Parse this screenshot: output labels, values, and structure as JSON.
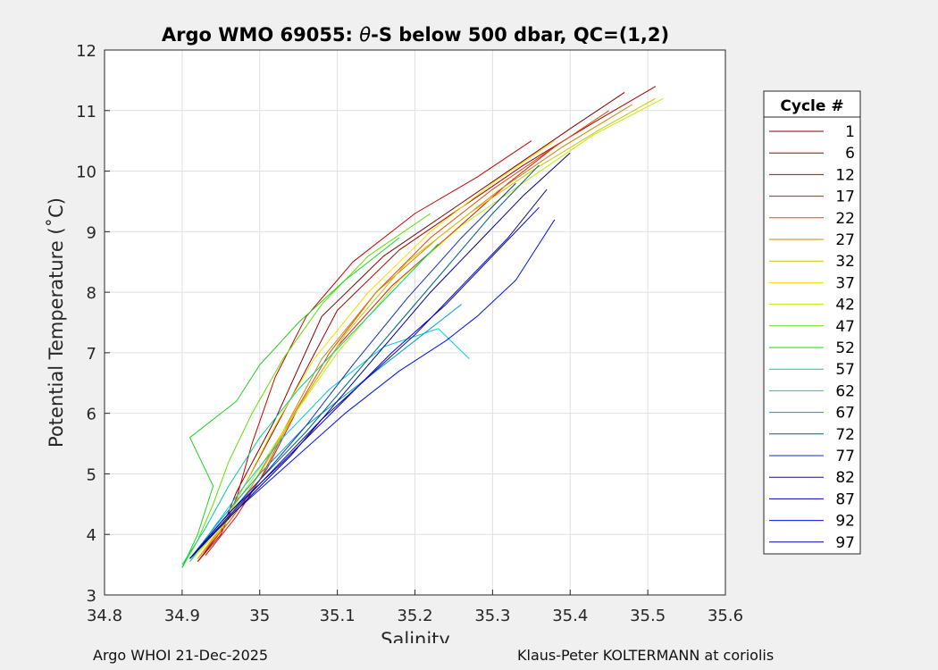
{
  "chart_data": {
    "type": "line",
    "title_prefix": "Argo WMO 69055: ",
    "title_symbol": "θ",
    "title_suffix": "-S below 500 dbar,  QC=(1,2)",
    "xlabel": "Salinity",
    "ylabel": "Potential Temperature (˚C)",
    "xlim": [
      34.8,
      35.6
    ],
    "ylim": [
      3,
      12
    ],
    "xticks": [
      34.8,
      34.9,
      35.0,
      35.1,
      35.2,
      35.3,
      35.4,
      35.5,
      35.6
    ],
    "xtick_labels": [
      "34.8",
      "34.9",
      "35",
      "35.1",
      "35.2",
      "35.3",
      "35.4",
      "35.5",
      "35.6"
    ],
    "yticks": [
      3,
      4,
      5,
      6,
      7,
      8,
      9,
      10,
      11,
      12
    ],
    "ytick_labels": [
      "3",
      "4",
      "5",
      "6",
      "7",
      "8",
      "9",
      "10",
      "11",
      "12"
    ],
    "grid": true,
    "legend": {
      "title": "Cycle #",
      "placement": "right",
      "entries": [
        "1",
        "6",
        "12",
        "17",
        "22",
        "27",
        "32",
        "37",
        "42",
        "47",
        "52",
        "57",
        "62",
        "67",
        "72",
        "77",
        "82",
        "87",
        "92",
        "97"
      ]
    },
    "series": [
      {
        "name": "1",
        "color": "#800000",
        "x": [
          34.92,
          34.95,
          34.97,
          35.02,
          35.08,
          35.16,
          35.24,
          35.32,
          35.4,
          35.47
        ],
        "y": [
          3.55,
          4.05,
          4.7,
          5.9,
          7.6,
          8.6,
          9.3,
          10.0,
          10.7,
          11.3
        ]
      },
      {
        "name": "6",
        "color": "#9e0000",
        "x": [
          34.92,
          34.95,
          34.98,
          35.03,
          35.1,
          35.18,
          35.26,
          35.34,
          35.43,
          35.51
        ],
        "y": [
          3.6,
          4.1,
          4.8,
          6.0,
          7.7,
          8.7,
          9.4,
          10.1,
          10.8,
          11.4
        ]
      },
      {
        "name": "12",
        "color": "#c80000",
        "x": [
          34.92,
          34.95,
          34.97,
          34.99,
          35.02,
          35.06,
          35.12,
          35.2,
          35.28,
          35.35
        ],
        "y": [
          3.55,
          4.0,
          4.6,
          5.5,
          6.6,
          7.6,
          8.5,
          9.3,
          9.9,
          10.5
        ]
      },
      {
        "name": "17",
        "color": "#e01010",
        "x": [
          34.93,
          34.97,
          35.01,
          35.05,
          35.1,
          35.17,
          35.25,
          35.32,
          35.38
        ],
        "y": [
          3.65,
          4.3,
          5.1,
          6.1,
          7.1,
          8.1,
          9.0,
          9.8,
          10.4
        ]
      },
      {
        "name": "22",
        "color": "#e34a00",
        "x": [
          34.92,
          34.96,
          35.0,
          35.04,
          35.09,
          35.15,
          35.22,
          35.3,
          35.38,
          35.45
        ],
        "y": [
          3.6,
          4.2,
          4.9,
          5.9,
          7.0,
          8.0,
          8.9,
          9.7,
          10.4,
          11.0
        ]
      },
      {
        "name": "27",
        "color": "#cc8800",
        "x": [
          34.92,
          34.95,
          34.99,
          35.03,
          35.08,
          35.15,
          35.23,
          35.31,
          35.39,
          35.48
        ],
        "y": [
          3.6,
          4.1,
          4.8,
          5.7,
          6.9,
          8.0,
          8.9,
          9.7,
          10.4,
          11.1
        ]
      },
      {
        "name": "32",
        "color": "#d6c000",
        "x": [
          34.92,
          34.96,
          35.0,
          35.05,
          35.11,
          35.19,
          35.27,
          35.35,
          35.44,
          35.51
        ],
        "y": [
          3.6,
          4.25,
          5.0,
          6.1,
          7.3,
          8.5,
          9.3,
          10.0,
          10.7,
          11.2
        ]
      },
      {
        "name": "37",
        "color": "#f0e000",
        "x": [
          34.91,
          34.95,
          34.98,
          35.02,
          35.07,
          35.14,
          35.22,
          35.3,
          35.38
        ],
        "y": [
          3.55,
          4.1,
          4.8,
          5.8,
          6.9,
          8.0,
          9.0,
          9.8,
          10.5
        ]
      },
      {
        "name": "42",
        "color": "#b8f000",
        "x": [
          34.91,
          34.95,
          34.99,
          35.04,
          35.1,
          35.18,
          35.26,
          35.35,
          35.43,
          35.52
        ],
        "y": [
          3.55,
          4.15,
          4.9,
          5.9,
          7.0,
          8.2,
          9.1,
          9.9,
          10.6,
          11.2
        ]
      },
      {
        "name": "47",
        "color": "#60e000",
        "x": [
          34.9,
          34.92,
          34.94,
          34.96,
          34.99,
          35.03,
          35.08,
          35.14,
          35.22
        ],
        "y": [
          3.45,
          3.9,
          4.5,
          5.2,
          6.0,
          6.9,
          7.8,
          8.6,
          9.3
        ]
      },
      {
        "name": "52",
        "color": "#20d020",
        "x": [
          34.9,
          34.92,
          34.94,
          34.91,
          34.97,
          35.0,
          35.05,
          35.11,
          35.18
        ],
        "y": [
          3.45,
          4.0,
          4.8,
          5.6,
          6.2,
          6.8,
          7.5,
          8.2,
          8.9
        ]
      },
      {
        "name": "57",
        "color": "#00d090",
        "x": [
          34.9,
          34.93,
          34.96,
          35.0,
          35.05,
          35.11,
          35.17,
          35.23
        ],
        "y": [
          3.5,
          4.1,
          4.8,
          5.6,
          6.4,
          7.2,
          8.0,
          8.8
        ]
      },
      {
        "name": "62",
        "color": "#00c8e0",
        "x": [
          34.91,
          34.94,
          34.98,
          35.03,
          35.09,
          35.16,
          35.23,
          35.27
        ],
        "y": [
          3.55,
          4.1,
          4.8,
          5.6,
          6.4,
          7.1,
          7.4,
          6.9
        ]
      },
      {
        "name": "67",
        "color": "#00a0c0",
        "x": [
          34.91,
          34.95,
          35.0,
          35.06,
          35.13,
          35.2,
          35.26
        ],
        "y": [
          3.6,
          4.25,
          5.0,
          5.8,
          6.5,
          7.2,
          7.8
        ]
      },
      {
        "name": "72",
        "color": "#006080",
        "x": [
          34.91,
          34.95,
          35.0,
          35.06,
          35.12,
          35.18,
          35.24,
          35.3,
          35.36
        ],
        "y": [
          3.6,
          4.2,
          4.9,
          5.7,
          6.6,
          7.5,
          8.4,
          9.3,
          10.1
        ]
      },
      {
        "name": "77",
        "color": "#1030c0",
        "x": [
          34.91,
          34.95,
          35.0,
          35.06,
          35.12,
          35.19,
          35.26,
          35.33
        ],
        "y": [
          3.6,
          4.2,
          4.9,
          5.8,
          6.8,
          7.9,
          8.9,
          9.8
        ]
      },
      {
        "name": "82",
        "color": "#101080",
        "x": [
          34.91,
          34.96,
          35.02,
          35.08,
          35.14,
          35.2,
          35.26,
          35.32,
          35.37
        ],
        "y": [
          3.6,
          4.3,
          5.1,
          5.9,
          6.6,
          7.3,
          8.1,
          8.9,
          9.7
        ]
      },
      {
        "name": "87",
        "color": "#0000d8",
        "x": [
          34.91,
          34.96,
          35.03,
          35.1,
          35.17,
          35.24,
          35.3,
          35.36
        ],
        "y": [
          3.6,
          4.35,
          5.2,
          6.1,
          7.0,
          7.8,
          8.6,
          9.4
        ]
      },
      {
        "name": "92",
        "color": "#0010f0",
        "x": [
          34.91,
          34.97,
          35.04,
          35.11,
          35.18,
          35.24,
          35.28,
          35.33,
          35.38
        ],
        "y": [
          3.6,
          4.4,
          5.2,
          6.0,
          6.7,
          7.2,
          7.6,
          8.2,
          9.2
        ]
      },
      {
        "name": "97",
        "color": "#000090",
        "x": [
          34.91,
          34.97,
          35.04,
          35.1,
          35.16,
          35.22,
          35.28,
          35.34,
          35.4
        ],
        "y": [
          3.6,
          4.4,
          5.3,
          6.2,
          7.1,
          8.0,
          8.8,
          9.6,
          10.3
        ]
      }
    ]
  },
  "footer": {
    "left": "Argo WHOI 21-Dec-2025",
    "right": "Klaus-Peter KOLTERMANN at coriolis"
  }
}
